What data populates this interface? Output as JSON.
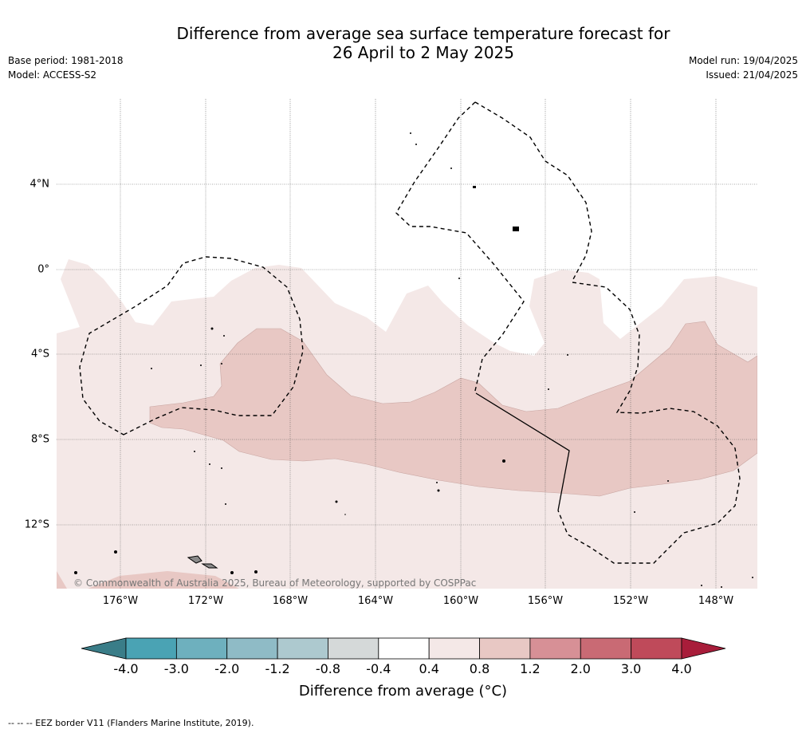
{
  "header": {
    "title_line1": "Difference from average sea surface temperature forecast for",
    "title_line2": "26 April to 2 May 2025",
    "base_period": "Base period: 1981-2018",
    "model": "Model: ACCESS-S2",
    "model_run": "Model run: 19/04/2025",
    "issued": "Issued: 21/04/2025"
  },
  "map": {
    "lon_labels": [
      "176°W",
      "172°W",
      "168°W",
      "164°W",
      "160°W",
      "156°W",
      "152°W",
      "148°W"
    ],
    "lat_labels": [
      "4°N",
      "0°",
      "4°S",
      "8°S",
      "12°S"
    ],
    "copyright": "© Commonwealth of Australia 2025, Bureau of Meteorology, supported by COSPPac"
  },
  "colorbar": {
    "ticks": [
      "-4.0",
      "-3.0",
      "-2.0",
      "-1.2",
      "-0.8",
      "-0.4",
      "0.4",
      "0.8",
      "1.2",
      "2.0",
      "3.0",
      "4.0"
    ],
    "colors": [
      "#4aa3b4",
      "#6eb0be",
      "#8fbbc6",
      "#adc9cf",
      "#d5d9d9",
      "#ffffff",
      "#f4e8e7",
      "#e8c8c4",
      "#d79096",
      "#c96a74",
      "#bf4a5a"
    ],
    "under_color": "#3a7d88",
    "over_color": "#a81d3a",
    "label": "Difference from average (°C)"
  },
  "footnote": "-- -- -- EEZ border V11 (Flanders Marine Institute, 2019)."
}
